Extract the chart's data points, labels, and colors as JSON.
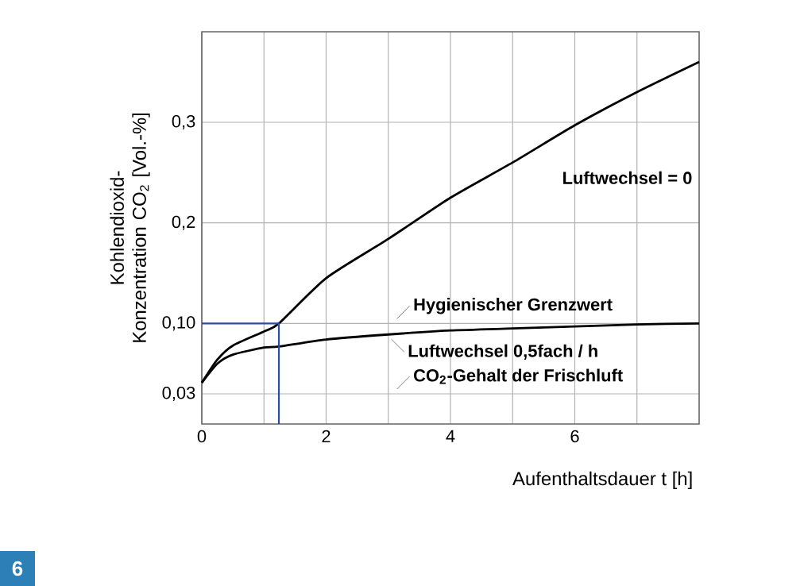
{
  "chart_data": {
    "type": "line",
    "xlabel": "Aufenthaltsdauer t [h]",
    "ylabel": "Kohlendioxid-Konzentration CO$_{2}$ [Vol.-%]",
    "series": [
      {
        "name": "Luftwechsel = 0",
        "color": "#000000",
        "x": [
          0,
          0.25,
          0.5,
          1,
          1.24,
          2,
          3,
          4,
          5,
          6,
          7,
          8
        ],
        "values": [
          0.041,
          0.064,
          0.078,
          0.092,
          0.1,
          0.145,
          0.184,
          0.225,
          0.26,
          0.297,
          0.33,
          0.36
        ]
      },
      {
        "name": "Luftwechsel 0,5fach / h",
        "color": "#000000",
        "x": [
          0,
          0.25,
          0.5,
          1,
          1.24,
          2,
          3,
          4,
          5,
          6,
          7,
          8
        ],
        "values": [
          0.041,
          0.06,
          0.069,
          0.076,
          0.077,
          0.084,
          0.089,
          0.093,
          0.095,
          0.097,
          0.099,
          0.1
        ]
      },
      {
        "color": "#2b4da0",
        "x": [
          0,
          1.24,
          1.24
        ],
        "values": [
          0.1,
          0.1,
          0
        ]
      }
    ],
    "xlim": [
      0,
      8
    ],
    "xticks": [
      0,
      {
        "value": 1,
        "label": null
      },
      2,
      {
        "value": 3,
        "label": null
      },
      4,
      {
        "value": 5,
        "label": null
      },
      6,
      {
        "value": 7,
        "label": null
      }
    ],
    "ylim": [
      0,
      0.39
    ],
    "yticks": [
      {
        "value": 0.03,
        "label": "0,03"
      },
      {
        "value": 0.1,
        "label": "0,10"
      },
      {
        "value": 0.2,
        "label": "0,2"
      },
      {
        "value": 0.3,
        "label": "0,3"
      }
    ],
    "grid": true,
    "legend": false,
    "marker": "none",
    "line_style": "solid",
    "annotations": [
      "Hygienischer Grenzwert",
      "CO$_{2}$-Gehalt der Frischluft",
      "6"
    ]
  }
}
